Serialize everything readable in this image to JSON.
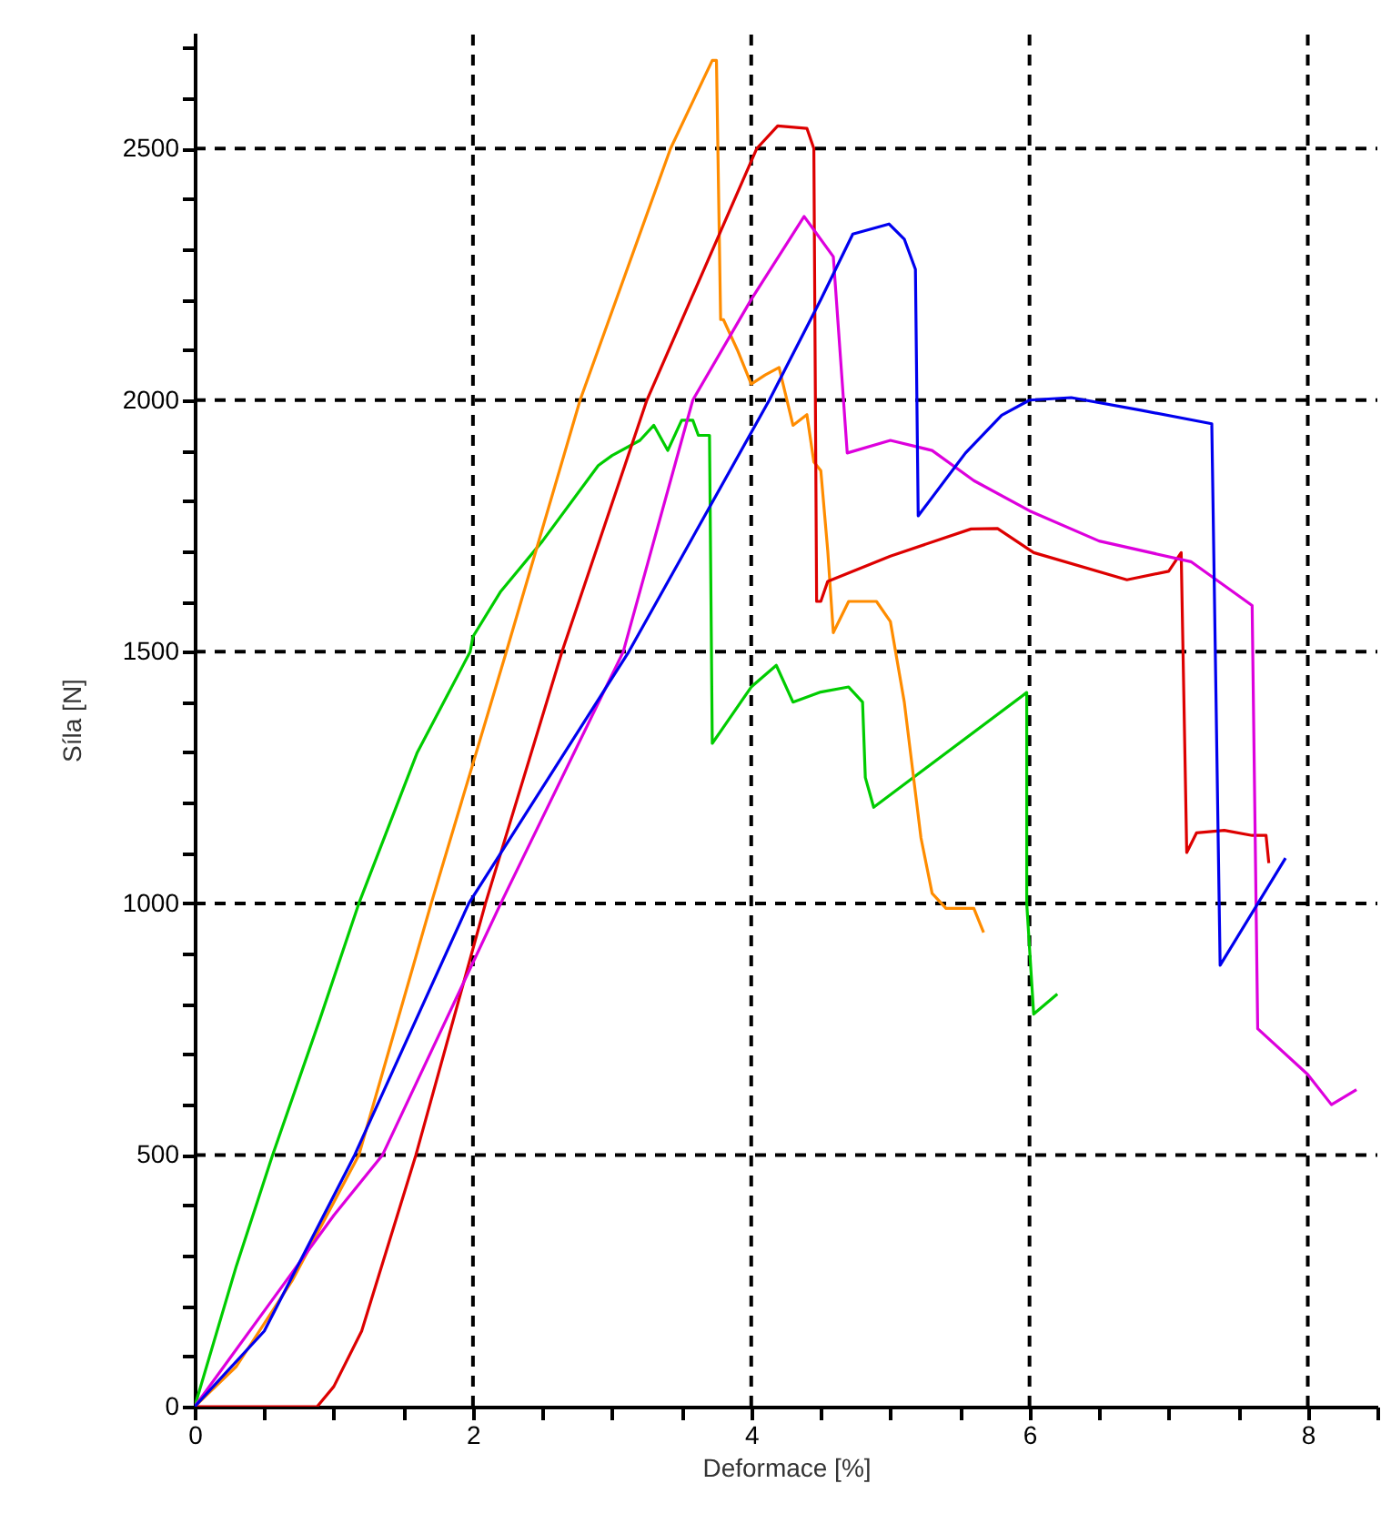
{
  "chart_data": {
    "type": "line",
    "xlabel": "Deformace [%]",
    "ylabel": "Síla [N]",
    "xlim": [
      0,
      8.5
    ],
    "ylim": [
      0,
      2730
    ],
    "xticks": [
      0,
      {
        "value": 0.5,
        "label": null
      },
      2,
      {
        "value": 1,
        "label": null
      },
      {
        "value": 1.5,
        "label": null
      },
      {
        "value": 2.5,
        "label": null
      },
      {
        "value": 3,
        "label": null
      },
      {
        "value": 3.5,
        "label": null
      },
      4,
      {
        "value": 4.5,
        "label": null
      },
      {
        "value": 5,
        "label": null
      },
      {
        "value": 5.5,
        "label": null
      },
      6,
      {
        "value": 6.5,
        "label": null
      },
      {
        "value": 7,
        "label": null
      },
      {
        "value": 7.5,
        "label": null
      },
      8,
      {
        "value": 8.5,
        "label": null
      }
    ],
    "yticks": [
      0,
      {
        "value": 100,
        "label": null
      },
      {
        "value": 200,
        "label": null
      },
      {
        "value": 300,
        "label": null
      },
      {
        "value": 400,
        "label": null
      },
      500,
      {
        "value": 600,
        "label": null
      },
      {
        "value": 700,
        "label": null
      },
      {
        "value": 800,
        "label": null
      },
      {
        "value": 900,
        "label": null
      },
      1000,
      {
        "value": 1100,
        "label": null
      },
      {
        "value": 1200,
        "label": null
      },
      {
        "value": 1300,
        "label": null
      },
      {
        "value": 1400,
        "label": null
      },
      1500,
      {
        "value": 1600,
        "label": null
      },
      {
        "value": 1700,
        "label": null
      },
      {
        "value": 1800,
        "label": null
      },
      {
        "value": 1900,
        "label": null
      },
      2000,
      {
        "value": 2100,
        "label": null
      },
      {
        "value": 2200,
        "label": null
      },
      {
        "value": 2300,
        "label": null
      },
      {
        "value": 2400,
        "label": null
      },
      2500,
      {
        "value": 2600,
        "label": null
      },
      {
        "value": 2700,
        "label": null
      }
    ],
    "grid": true,
    "line_style": "solid",
    "series": [
      {
        "color": "#00cc00",
        "x": [
          0,
          0.3,
          0.56,
          0.9,
          1.18,
          1.6,
          1.98,
          2.0,
          2.2,
          2.5,
          2.9,
          3.0,
          3.2,
          3.3,
          3.4,
          3.5,
          3.58,
          3.62,
          3.7,
          3.72,
          3.8,
          4.0,
          4.18,
          4.3,
          4.5,
          4.7,
          4.8,
          4.82,
          4.88,
          5.98,
          5.98,
          6.03,
          6.2
        ],
        "values": [
          0,
          280,
          500,
          770,
          1000,
          1300,
          1500,
          1530,
          1620,
          1720,
          1870,
          1890,
          1920,
          1950,
          1900,
          1960,
          1960,
          1930,
          1930,
          1318,
          1350,
          1430,
          1473,
          1400,
          1420,
          1430,
          1400,
          1250,
          1191,
          1419,
          1000,
          780,
          820
        ]
      },
      {
        "color": "#ff8c00",
        "x": [
          0,
          0.3,
          0.7,
          1.18,
          1.7,
          2.24,
          2.77,
          3.42,
          3.72,
          3.75,
          3.78,
          3.8,
          3.9,
          4.0,
          4.1,
          4.2,
          4.3,
          4.4,
          4.45,
          4.5,
          4.55,
          4.59,
          4.7,
          4.9,
          5.0,
          5.1,
          5.22,
          5.3,
          5.4,
          5.6,
          5.67
        ],
        "values": [
          0,
          80,
          250,
          500,
          1000,
          1500,
          2000,
          2500,
          2675,
          2675,
          2160,
          2160,
          2100,
          2032,
          2050,
          2065,
          1950,
          1971,
          1877,
          1860,
          1700,
          1538,
          1600,
          1600,
          1560,
          1400,
          1130,
          1020,
          990,
          990,
          942
        ]
      },
      {
        "color": "#dd0000",
        "x": [
          0,
          0.88,
          1.0,
          1.2,
          1.59,
          2.09,
          2.64,
          3.25,
          4.04,
          4.19,
          4.4,
          4.45,
          4.47,
          4.5,
          4.55,
          5.0,
          5.58,
          5.77,
          6.03,
          6.7,
          7.0,
          7.09,
          7.13,
          7.2,
          7.4,
          7.6,
          7.7,
          7.72
        ],
        "values": [
          0,
          0,
          40,
          150,
          500,
          1000,
          1500,
          2000,
          2500,
          2545,
          2540,
          2500,
          1600,
          1600,
          1640,
          1690,
          1744,
          1745,
          1697,
          1643,
          1660,
          1697,
          1101,
          1140,
          1145,
          1135,
          1135,
          1080
        ]
      },
      {
        "color": "#dd00dd",
        "x": [
          0,
          0.5,
          1.0,
          1.35,
          2.2,
          3.08,
          3.58,
          4.0,
          4.38,
          4.59,
          4.69,
          5.0,
          5.3,
          5.6,
          6.0,
          6.5,
          7.16,
          7.6,
          7.64,
          8.0,
          8.17,
          8.35
        ],
        "values": [
          0,
          190,
          380,
          500,
          1000,
          1500,
          2000,
          2200,
          2365,
          2285,
          1895,
          1920,
          1900,
          1840,
          1780,
          1720,
          1679,
          1592,
          751,
          660,
          600,
          630
        ]
      },
      {
        "color": "#0000ee",
        "x": [
          0,
          0.5,
          1.15,
          1.97,
          3.12,
          4.13,
          4.5,
          4.73,
          4.99,
          5.1,
          5.18,
          5.2,
          5.54,
          5.8,
          6.0,
          6.3,
          6.8,
          7.31,
          7.37,
          7.84
        ],
        "values": [
          0,
          150,
          500,
          1000,
          1500,
          2000,
          2200,
          2330,
          2350,
          2320,
          2260,
          1770,
          1895,
          1970,
          2000,
          2005,
          1980,
          1953,
          877,
          1090
        ]
      }
    ]
  }
}
